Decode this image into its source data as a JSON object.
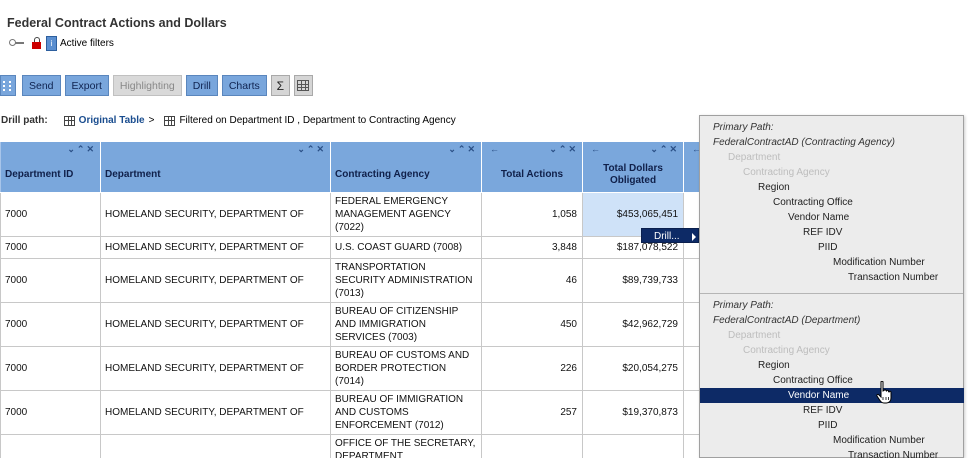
{
  "page": {
    "title": "Federal Contract Actions and Dollars",
    "active_filters_label": "Active filters"
  },
  "toolbar": {
    "send": "Send",
    "export": "Export",
    "highlighting": "Highlighting",
    "drill": "Drill",
    "charts": "Charts",
    "sigma": "Σ"
  },
  "drill_path": {
    "label": "Drill path:",
    "original_table": "Original Table",
    "sep": ">",
    "filter_text": "Filtered on Department ID , Department to Contracting Agency"
  },
  "table": {
    "headers": {
      "dept_id": "Department ID",
      "dept": "Department",
      "agency": "Contracting Agency",
      "total_actions": "Total Actions",
      "total_dollars": "Total Dollars Obligated"
    },
    "rows": [
      {
        "dept_id": "7000",
        "dept": "HOMELAND SECURITY, DEPARTMENT OF",
        "agency": "FEDERAL EMERGENCY MANAGEMENT AGENCY (7022)",
        "actions": "1,058",
        "dollars": "$453,065,451"
      },
      {
        "dept_id": "7000",
        "dept": "HOMELAND SECURITY, DEPARTMENT OF",
        "agency": "U.S. COAST GUARD (7008)",
        "actions": "3,848",
        "dollars": "$187,078,522"
      },
      {
        "dept_id": "7000",
        "dept": "HOMELAND SECURITY, DEPARTMENT OF",
        "agency": "TRANSPORTATION SECURITY ADMINISTRATION (7013)",
        "actions": "46",
        "dollars": "$89,739,733"
      },
      {
        "dept_id": "7000",
        "dept": "HOMELAND SECURITY, DEPARTMENT OF",
        "agency": "BUREAU OF CITIZENSHIP AND IMMIGRATION SERVICES (7003)",
        "actions": "450",
        "dollars": "$42,962,729"
      },
      {
        "dept_id": "7000",
        "dept": "HOMELAND SECURITY, DEPARTMENT OF",
        "agency": "BUREAU OF CUSTOMS AND BORDER PROTECTION (7014)",
        "actions": "226",
        "dollars": "$20,054,275"
      },
      {
        "dept_id": "7000",
        "dept": "HOMELAND SECURITY, DEPARTMENT OF",
        "agency": "BUREAU OF IMMIGRATION AND CUSTOMS ENFORCEMENT (7012)",
        "actions": "257",
        "dollars": "$19,370,873"
      },
      {
        "dept_id": "",
        "dept": "",
        "agency": "OFFICE OF THE SECRETARY, DEPARTMENT",
        "actions": "",
        "dollars": ""
      }
    ]
  },
  "context_menu": {
    "drill": "Drill..."
  },
  "drill_panel": {
    "section1": {
      "header": "Primary Path:",
      "source": "FederalContractAD (Contracting Agency)",
      "items": [
        {
          "label": "Department",
          "state": "muted"
        },
        {
          "label": "Contracting Agency",
          "state": "muted"
        },
        {
          "label": "Region",
          "state": "normal"
        },
        {
          "label": "Contracting Office",
          "state": "normal"
        },
        {
          "label": "Vendor Name",
          "state": "normal"
        },
        {
          "label": "REF IDV",
          "state": "normal"
        },
        {
          "label": "PIID",
          "state": "normal"
        },
        {
          "label": "Modification Number",
          "state": "normal"
        },
        {
          "label": "Transaction Number",
          "state": "normal"
        }
      ]
    },
    "section2": {
      "header": "Primary Path:",
      "source": "FederalContractAD (Department)",
      "items": [
        {
          "label": "Department",
          "state": "muted"
        },
        {
          "label": "Contracting Agency",
          "state": "muted"
        },
        {
          "label": "Region",
          "state": "normal"
        },
        {
          "label": "Contracting Office",
          "state": "normal"
        },
        {
          "label": "Vendor Name",
          "state": "highlighted"
        },
        {
          "label": "REF IDV",
          "state": "normal"
        },
        {
          "label": "PIID",
          "state": "normal"
        },
        {
          "label": "Modification Number",
          "state": "normal"
        },
        {
          "label": "Transaction Number",
          "state": "normal"
        }
      ]
    }
  },
  "colors": {
    "header_bg": "#7aa7dc",
    "button_bg": "#79a6dc",
    "highlight": "#0d2a66",
    "panel_bg": "#ececec"
  }
}
